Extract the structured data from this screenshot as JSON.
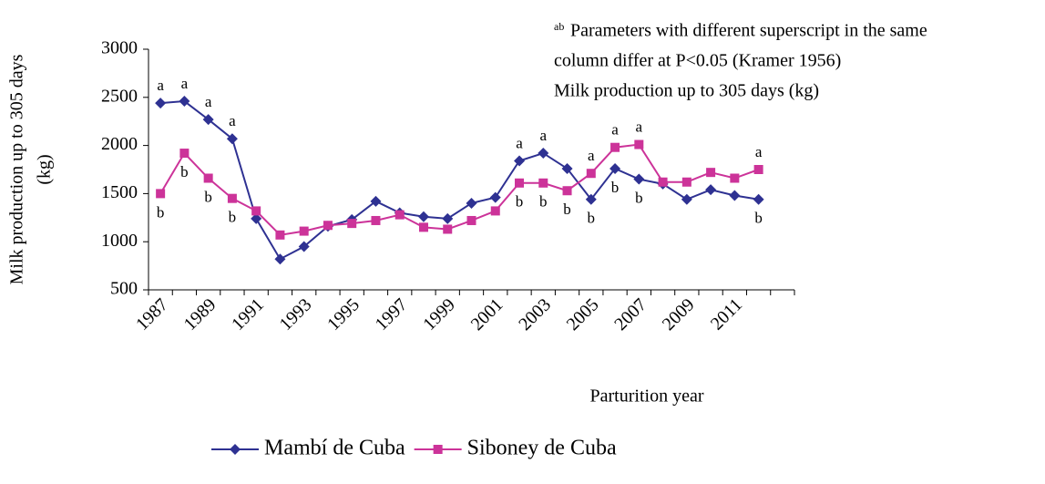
{
  "chart_data": {
    "type": "line",
    "ylabel": [
      "Milk production up to 305 days",
      "(kg)"
    ],
    "xlabel": "Parturition year",
    "note_superscript": "ab",
    "notes": [
      "Parameters with different superscript in the same",
      "column differ at P<0.05 (Kramer 1956)",
      "Milk production up to 305 days (kg)"
    ],
    "categories": [
      "1987",
      null,
      "1989",
      null,
      "1991",
      null,
      "1993",
      null,
      "1995",
      null,
      "1997",
      null,
      "1999",
      null,
      "2001",
      null,
      "2003",
      null,
      "2005",
      null,
      "2007",
      null,
      "2009",
      null,
      "2011",
      null,
      null
    ],
    "series": [
      {
        "name": "Mambí de Cuba",
        "color": "#2e3192",
        "marker": "diamond",
        "values": [
          2440,
          2460,
          2270,
          2070,
          1240,
          820,
          950,
          1160,
          1230,
          1420,
          1300,
          1260,
          1240,
          1400,
          1460,
          1840,
          1920,
          1760,
          1440,
          1760,
          1650,
          1600,
          1440,
          1540,
          1480,
          1440,
          null
        ],
        "letters": [
          "a",
          "a",
          "a",
          "a",
          null,
          null,
          null,
          null,
          null,
          null,
          null,
          null,
          null,
          null,
          null,
          "a",
          "a",
          null,
          "b",
          "b",
          "b",
          null,
          null,
          null,
          null,
          "b",
          null
        ]
      },
      {
        "name": "Siboney de Cuba",
        "color": "#cc3399",
        "marker": "square",
        "values": [
          1500,
          1920,
          1660,
          1450,
          1320,
          1070,
          1110,
          1170,
          1190,
          1220,
          1280,
          1150,
          1130,
          1220,
          1320,
          1610,
          1610,
          1530,
          1710,
          1980,
          2010,
          1620,
          1620,
          1720,
          1660,
          1750,
          null
        ],
        "letters": [
          "b",
          "b",
          "b",
          "b",
          null,
          null,
          null,
          null,
          null,
          null,
          null,
          null,
          null,
          null,
          null,
          "b",
          "b",
          "b",
          "a",
          "a",
          "a",
          null,
          null,
          null,
          null,
          "a",
          null
        ]
      }
    ],
    "ylim": [
      500,
      3000
    ],
    "yticks": [
      500,
      1000,
      1500,
      2000,
      2500,
      3000
    ]
  }
}
